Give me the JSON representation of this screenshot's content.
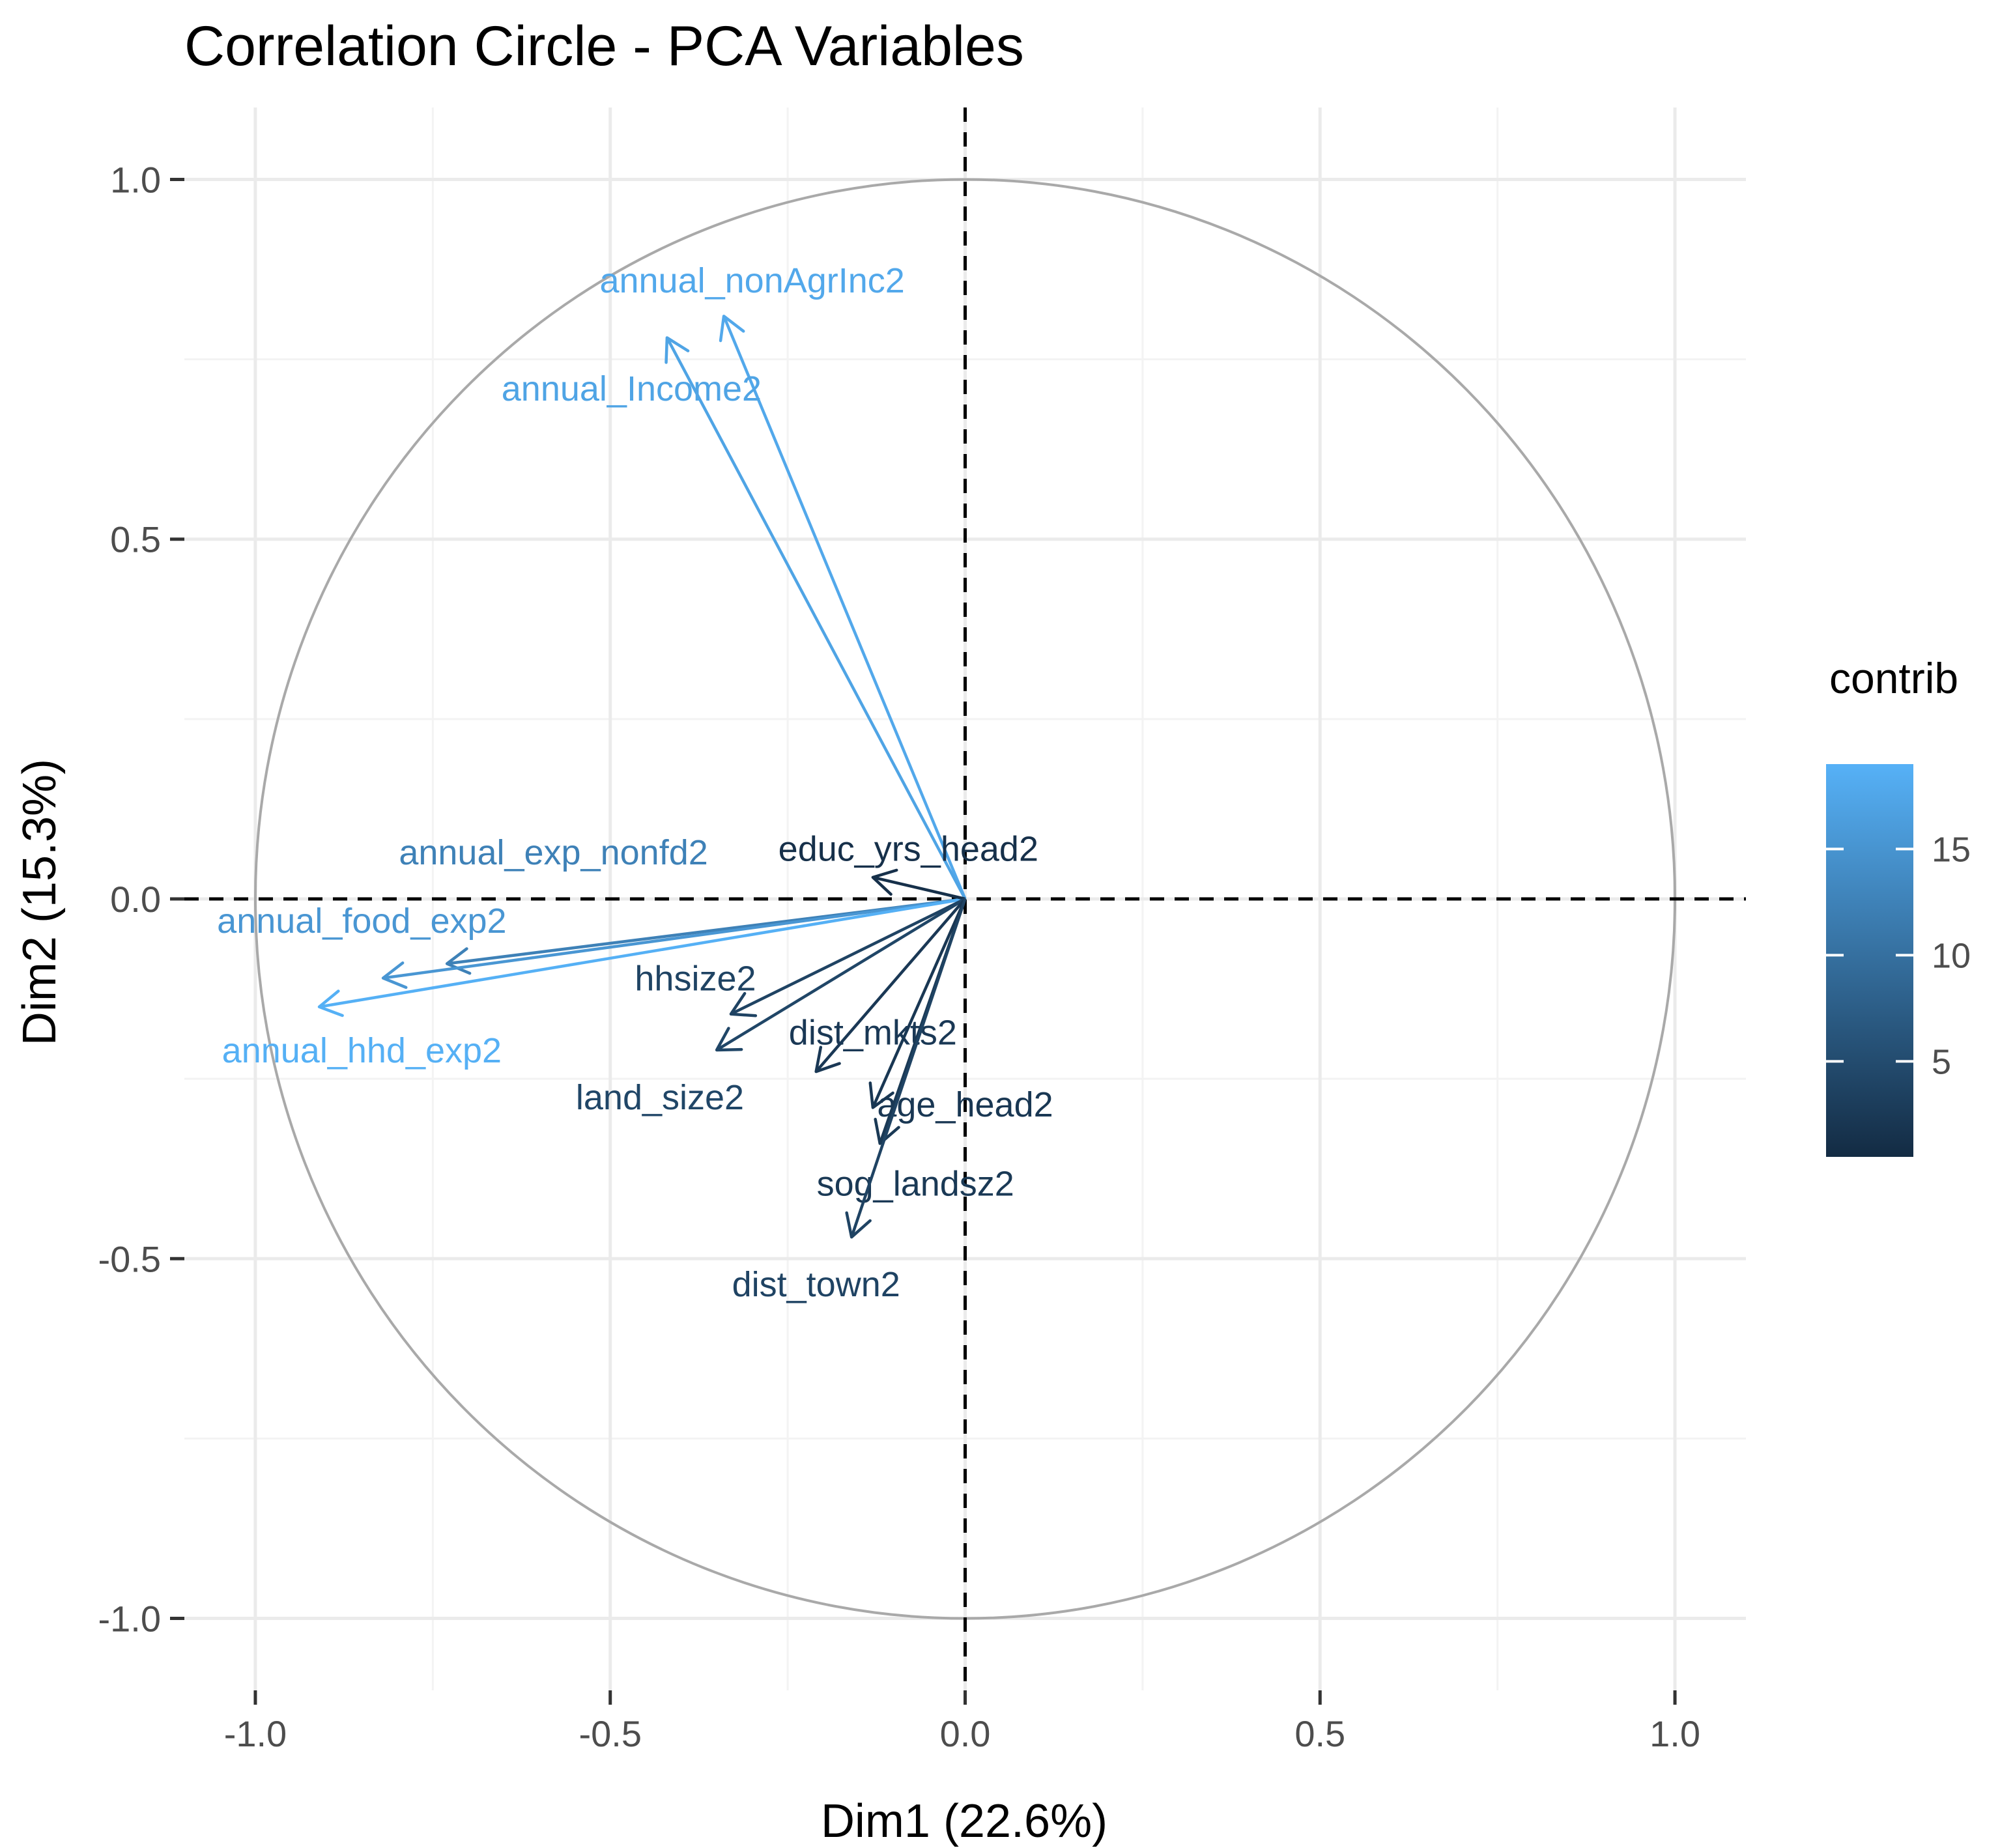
{
  "chart_data": {
    "type": "scatter",
    "title": "Correlation Circle - PCA Variables",
    "xlabel": "Dim1 (22.6%)",
    "ylabel": "Dim2 (15.3%)",
    "xlim": [
      -1.1,
      1.1
    ],
    "ylim": [
      -1.1,
      1.1
    ],
    "x_ticks": [
      "-1.0",
      "-0.5",
      "0.0",
      "0.5",
      "1.0"
    ],
    "y_ticks": [
      "1.0",
      "0.5",
      "0.0",
      "-0.5",
      "-1.0"
    ],
    "grid": true,
    "unit_circle": true,
    "reference_lines": "dashed lines at x = 0 and y = 0",
    "legend": {
      "title": "contrib",
      "placement": "right",
      "type": "colorbar",
      "ticks": [
        "15",
        "10",
        "5"
      ],
      "tick_values": [
        15,
        10,
        5
      ],
      "range": [
        0.5,
        19
      ],
      "color_low": "#132b43",
      "color_high": "#56b1f7"
    },
    "variables": [
      {
        "name": "annual_nonAgrInc2",
        "x": -0.34,
        "y": 0.81,
        "contrib": 17.8,
        "label_x": -0.3,
        "label_y": 0.86
      },
      {
        "name": "annual_Income2",
        "x": -0.42,
        "y": 0.78,
        "contrib": 17.2,
        "label_x": -0.47,
        "label_y": 0.71
      },
      {
        "name": "annual_exp_nonfd2",
        "x": -0.73,
        "y": -0.09,
        "contrib": 12.4,
        "label_x": -0.58,
        "label_y": 0.065
      },
      {
        "name": "annual_food_exp2",
        "x": -0.82,
        "y": -0.11,
        "contrib": 15.3,
        "label_x": -0.85,
        "label_y": -0.03
      },
      {
        "name": "annual_hhd_exp2",
        "x": -0.91,
        "y": -0.15,
        "contrib": 18.8,
        "label_x": -0.85,
        "label_y": -0.21
      },
      {
        "name": "educ_yrs_head2",
        "x": -0.13,
        "y": 0.03,
        "contrib": 1.2,
        "label_x": -0.08,
        "label_y": 0.07
      },
      {
        "name": "hhsize2",
        "x": -0.33,
        "y": -0.16,
        "contrib": 3.8,
        "label_x": -0.38,
        "label_y": -0.11
      },
      {
        "name": "land_size2",
        "x": -0.35,
        "y": -0.21,
        "contrib": 4.2,
        "label_x": -0.43,
        "label_y": -0.275
      },
      {
        "name": "dist_mkts2",
        "x": -0.21,
        "y": -0.24,
        "contrib": 2.3,
        "label_x": -0.13,
        "label_y": -0.185
      },
      {
        "name": "age_head2",
        "x": -0.13,
        "y": -0.29,
        "contrib": 2.1,
        "label_x": 0.0,
        "label_y": -0.285
      },
      {
        "name": "sog_landsz2",
        "x": -0.12,
        "y": -0.34,
        "contrib": 2.4,
        "label_x": -0.07,
        "label_y": -0.395
      },
      {
        "name": "dist_town2",
        "x": -0.16,
        "y": -0.47,
        "contrib": 3.8,
        "label_x": -0.21,
        "label_y": -0.535
      }
    ]
  }
}
